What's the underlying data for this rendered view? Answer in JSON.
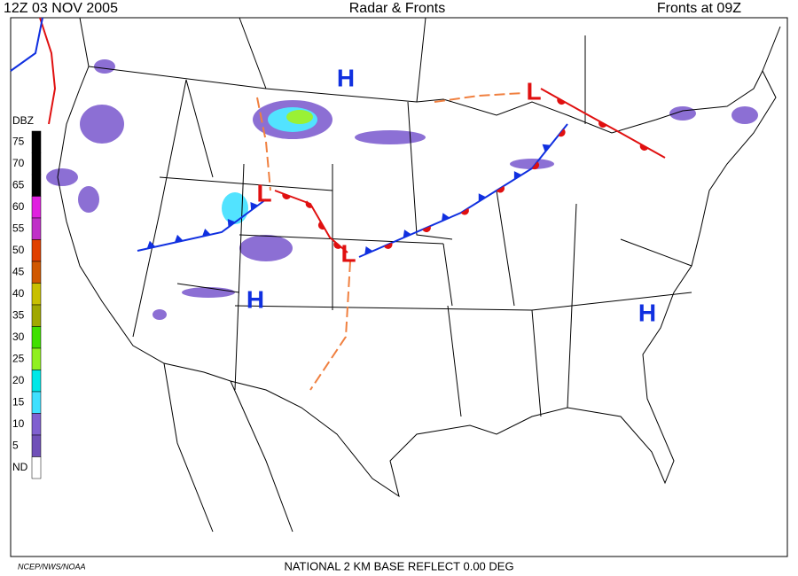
{
  "header": {
    "left": "12Z  03 NOV  2005",
    "center": "Radar & Fronts",
    "right": "Fronts at 09Z"
  },
  "legend": {
    "title": "DBZ",
    "levels": [
      {
        "label": "75",
        "color": "#000000"
      },
      {
        "label": "70",
        "color": "#000000"
      },
      {
        "label": "65",
        "color": "#000000"
      },
      {
        "label": "60",
        "color": "#e020e0"
      },
      {
        "label": "55",
        "color": "#c030c8"
      },
      {
        "label": "50",
        "color": "#e04000"
      },
      {
        "label": "45",
        "color": "#d05800"
      },
      {
        "label": "40",
        "color": "#c8c000"
      },
      {
        "label": "35",
        "color": "#a0a800"
      },
      {
        "label": "30",
        "color": "#40e000"
      },
      {
        "label": "25",
        "color": "#90f020"
      },
      {
        "label": "20",
        "color": "#00e8e8"
      },
      {
        "label": "15",
        "color": "#40e0ff"
      },
      {
        "label": "10",
        "color": "#8060d0"
      },
      {
        "label": "5",
        "color": "#7050b8"
      },
      {
        "label": "ND",
        "color": "#ffffff"
      }
    ]
  },
  "pressure_centers": [
    {
      "label": "H",
      "color": "#1030e0"
    },
    {
      "label": "H",
      "color": "#1030e0"
    },
    {
      "label": "H",
      "color": "#1030e0"
    },
    {
      "label": "L",
      "color": "#e01010"
    },
    {
      "label": "L",
      "color": "#e01010"
    },
    {
      "label": "L",
      "color": "#e01010"
    }
  ],
  "footer": {
    "credit": "NCEP/NWS/NOAA",
    "product": "NATIONAL 2 KM BASE REFLECT 0.00 DEG"
  }
}
